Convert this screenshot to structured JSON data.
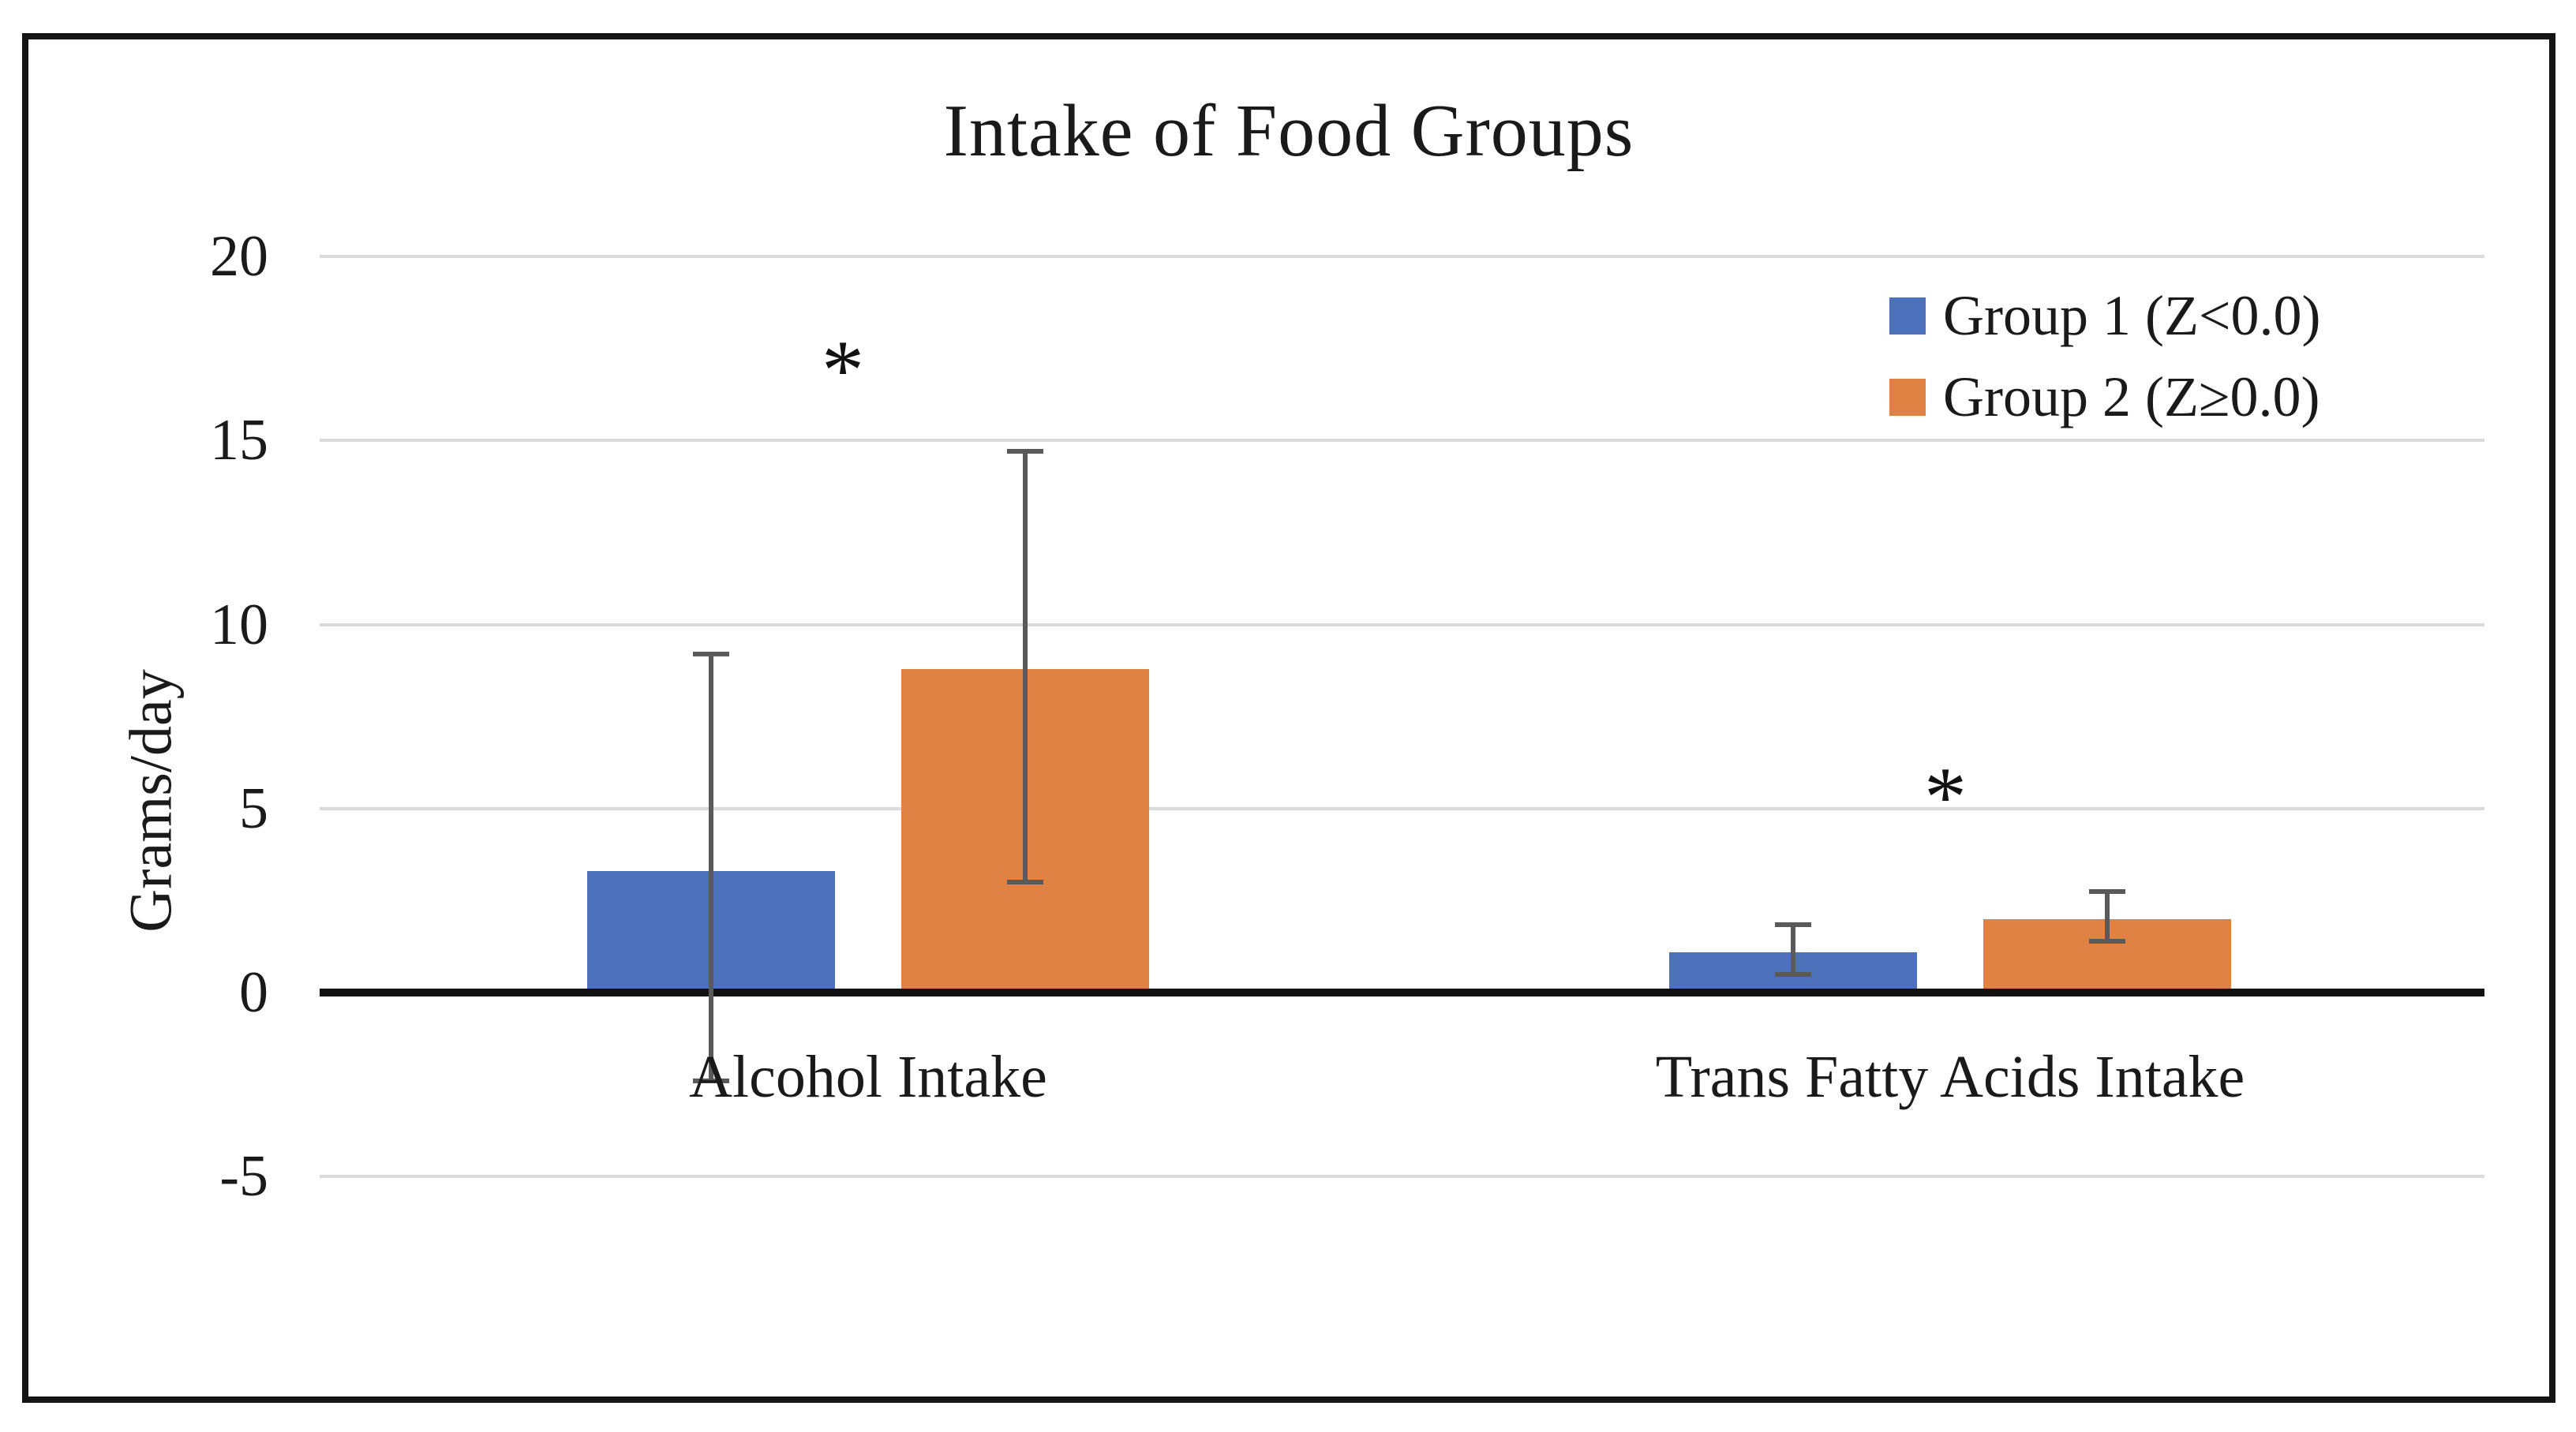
{
  "chart_data": {
    "type": "bar",
    "title": "Intake of Food Groups",
    "ylabel": "Grams/day",
    "categories": [
      "Alcohol Intake",
      "Trans Fatty Acids Intake"
    ],
    "series": [
      {
        "name": "Group 1 (Z<0.0)",
        "color": "#4E71BC",
        "values": [
          3.3,
          1.1
        ],
        "error_low": [
          -2.4,
          0.5
        ],
        "error_high": [
          9.2,
          1.85
        ]
      },
      {
        "name": "Group 2 (Z≥0.0)",
        "color": "#DF8244",
        "values": [
          8.8,
          2.0
        ],
        "error_low": [
          3.0,
          1.4
        ],
        "error_high": [
          14.7,
          2.75
        ]
      }
    ],
    "y_ticks": [
      20,
      15,
      10,
      5,
      0,
      -5
    ],
    "ylim": [
      -5,
      20
    ],
    "grid": true,
    "legend_position": "upper right",
    "annotations": [
      {
        "text": "*",
        "category_index": 0,
        "value": 17.4
      },
      {
        "text": "*",
        "category_index": 1,
        "value": 5.8
      }
    ],
    "error_bar_color": "#5A5A5A",
    "gridline_color": "#DADADA",
    "axis_color": "#111111"
  }
}
